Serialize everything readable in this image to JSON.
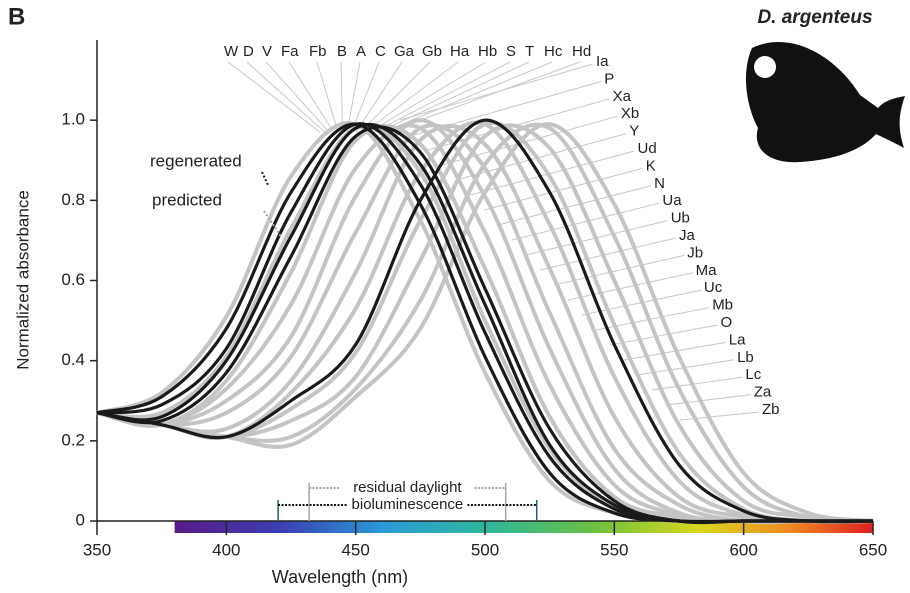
{
  "chart_data": {
    "type": "line",
    "panel_label": "B",
    "title": "D. argenteus",
    "x_label": "Wavelength (nm)",
    "y_label": "Normalized absorbance",
    "x": [
      350,
      375,
      400,
      425,
      450,
      475,
      500,
      525,
      550,
      575,
      600,
      625,
      650
    ],
    "xlim": [
      350,
      650
    ],
    "xticks": [
      350,
      400,
      450,
      500,
      550,
      600,
      650
    ],
    "ylim": [
      0,
      1.2
    ],
    "yticks": [
      0,
      0.2,
      0.4,
      0.6,
      0.8,
      {
        "value": 1,
        "label": "1.0"
      }
    ],
    "series": [
      {
        "color": "#c4c4c4",
        "values": [
          0.27,
          0.32,
          0.51,
          0.86,
          0.99,
          0.75,
          0.37,
          0.1,
          0.02,
          0,
          0,
          0,
          0
        ]
      },
      {
        "color": "#c4c4c4",
        "values": [
          0.27,
          0.27,
          0.41,
          0.73,
          0.98,
          0.87,
          0.5,
          0.18,
          0.035,
          0,
          0,
          0,
          0
        ]
      },
      {
        "color": "#c4c4c4",
        "values": [
          0.27,
          0.24,
          0.35,
          0.62,
          0.95,
          0.94,
          0.63,
          0.26,
          0.06,
          0.01,
          0,
          0,
          0
        ]
      },
      {
        "color": "#c4c4c4",
        "values": [
          0.27,
          0.24,
          0.33,
          0.54,
          0.88,
          0.98,
          0.72,
          0.34,
          0.09,
          0.015,
          0,
          0,
          0
        ]
      },
      {
        "color": "#c4c4c4",
        "values": [
          0.27,
          0.24,
          0.3,
          0.46,
          0.81,
          1.0,
          0.81,
          0.43,
          0.13,
          0.02,
          0,
          0,
          0
        ]
      },
      {
        "color": "#c4c4c4",
        "values": [
          0.27,
          0.24,
          0.27,
          0.41,
          0.72,
          0.98,
          0.88,
          0.52,
          0.18,
          0.04,
          0,
          0,
          0
        ]
      },
      {
        "color": "#c4c4c4",
        "values": [
          0.27,
          0.24,
          0.23,
          0.35,
          0.62,
          0.95,
          0.94,
          0.63,
          0.26,
          0.06,
          0.01,
          0,
          0
        ]
      },
      {
        "color": "#c4c4c4",
        "values": [
          0.27,
          0.24,
          0.21,
          0.32,
          0.53,
          0.87,
          0.99,
          0.74,
          0.36,
          0.1,
          0.015,
          0,
          0
        ]
      },
      {
        "color": "#c4c4c4",
        "values": [
          0.27,
          0.24,
          0.21,
          0.28,
          0.42,
          0.75,
          0.99,
          0.86,
          0.49,
          0.17,
          0.03,
          0,
          0
        ]
      },
      {
        "color": "#c4c4c4",
        "values": [
          0.27,
          0.24,
          0.21,
          0.25,
          0.36,
          0.65,
          0.96,
          0.93,
          0.6,
          0.24,
          0.05,
          0.01,
          0
        ]
      },
      {
        "color": "#c4c4c4",
        "values": [
          0.27,
          0.24,
          0.21,
          0.21,
          0.33,
          0.55,
          0.89,
          0.98,
          0.71,
          0.33,
          0.085,
          0.01,
          0
        ]
      },
      {
        "color": "#c4c4c4",
        "values": [
          0.27,
          0.24,
          0.21,
          0.19,
          0.31,
          0.48,
          0.82,
          0.99,
          0.79,
          0.41,
          0.12,
          0.02,
          0
        ]
      },
      {
        "color": "#1a1a1a",
        "values": [
          0.27,
          0.31,
          0.48,
          0.82,
          0.99,
          0.79,
          0.41,
          0.12,
          0.02,
          0,
          0,
          0,
          0
        ]
      },
      {
        "color": "#1a1a1a",
        "values": [
          0.27,
          0.29,
          0.43,
          0.77,
          0.99,
          0.84,
          0.47,
          0.16,
          0.03,
          0,
          0,
          0,
          0
        ]
      },
      {
        "color": "#1a1a1a",
        "values": [
          0.27,
          0.26,
          0.4,
          0.71,
          0.98,
          0.89,
          0.54,
          0.19,
          0.04,
          0,
          0,
          0,
          0
        ]
      },
      {
        "color": "#1a1a1a",
        "values": [
          0.27,
          0.25,
          0.37,
          0.66,
          0.96,
          0.92,
          0.58,
          0.23,
          0.05,
          0,
          0,
          0,
          0
        ]
      },
      {
        "color": "#1a1a1a",
        "values": [
          0.27,
          0.24,
          0.21,
          0.3,
          0.44,
          0.8,
          1.0,
          0.82,
          0.44,
          0.14,
          0.025,
          0,
          0
        ]
      }
    ],
    "legend": [
      {
        "text": "regenerated",
        "color": "#1a1a1a"
      },
      {
        "text": "predicted",
        "color": "#a8a8a8"
      }
    ],
    "pigment_labels": [
      {
        "text": "W",
        "color": "#a8a8a8"
      },
      {
        "text": "D",
        "color": "#1a1a1a"
      },
      {
        "text": "V",
        "color": "#a8a8a8"
      },
      {
        "text": "Fa",
        "color": "#a8a8a8"
      },
      {
        "text": "Fb",
        "color": "#a8a8a8"
      },
      {
        "text": "B",
        "color": "#1a1a1a"
      },
      {
        "text": "A",
        "color": "#1a1a1a"
      },
      {
        "text": "C",
        "color": "#1a1a1a"
      },
      {
        "text": "Ga",
        "color": "#a8a8a8"
      },
      {
        "text": "Gb",
        "color": "#a8a8a8"
      },
      {
        "text": "Ha",
        "color": "#a8a8a8"
      },
      {
        "text": "Hb",
        "color": "#a8a8a8"
      },
      {
        "text": "S",
        "color": "#a8a8a8"
      },
      {
        "text": "T",
        "color": "#a8a8a8"
      },
      {
        "text": "Hc",
        "color": "#a8a8a8"
      },
      {
        "text": "Hd",
        "color": "#a8a8a8"
      },
      {
        "text": "Ia",
        "color": "#a8a8a8"
      },
      {
        "text": "P",
        "color": "#a8a8a8"
      },
      {
        "text": "Xa",
        "color": "#a8a8a8"
      },
      {
        "text": "Xb",
        "color": "#a8a8a8"
      },
      {
        "text": "Y",
        "color": "#a8a8a8"
      },
      {
        "text": "Ud",
        "color": "#a8a8a8"
      },
      {
        "text": "K",
        "color": "#a8a8a8"
      },
      {
        "text": "N",
        "color": "#a8a8a8"
      },
      {
        "text": "Ua",
        "color": "#a8a8a8"
      },
      {
        "text": "Ub",
        "color": "#a8a8a8"
      },
      {
        "text": "Ja",
        "color": "#a8a8a8"
      },
      {
        "text": "Jb",
        "color": "#a8a8a8"
      },
      {
        "text": "Ma",
        "color": "#a8a8a8"
      },
      {
        "text": "Uc",
        "color": "#a8a8a8"
      },
      {
        "text": "Mb",
        "color": "#a8a8a8"
      },
      {
        "text": "O",
        "color": "#a8a8a8"
      },
      {
        "text": "La",
        "color": "#a8a8a8"
      },
      {
        "text": "Lb",
        "color": "#a8a8a8"
      },
      {
        "text": "Lc",
        "color": "#1a1a1a"
      },
      {
        "text": "Za",
        "color": "#a8a8a8"
      },
      {
        "text": "Zb",
        "color": "#a8a8a8"
      }
    ],
    "spectrum_bar": [
      380,
      650
    ],
    "ranges": [
      {
        "label": "residual daylight",
        "range": [
          432,
          508
        ],
        "color": "#a8a8a8"
      },
      {
        "label": "bioluminescence",
        "range": [
          420,
          520
        ],
        "color": "#1f5f6a"
      }
    ]
  }
}
